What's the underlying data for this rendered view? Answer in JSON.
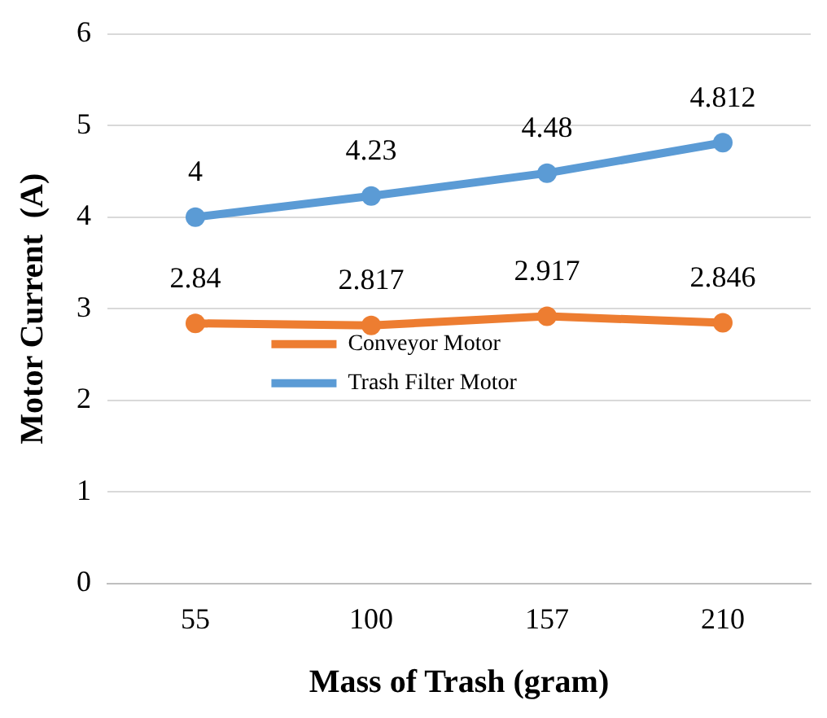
{
  "chart_data": {
    "type": "line",
    "xlabel": "Mass of Trash (gram)",
    "ylabel": "Motor Current  (A)",
    "categories": [
      "55",
      "100",
      "157",
      "210"
    ],
    "series": [
      {
        "name": "Conveyor Motor",
        "color": "#ed7d31",
        "values": [
          2.84,
          2.817,
          2.917,
          2.846
        ]
      },
      {
        "name": "Trash Filter Motor",
        "color": "#5b9bd5",
        "values": [
          4,
          4.23,
          4.48,
          4.812
        ]
      }
    ],
    "ylim": [
      0,
      6
    ],
    "yticks": [
      0,
      1,
      2,
      3,
      4,
      5,
      6
    ],
    "grid": "y",
    "legend": "center",
    "marker": "circle",
    "line_style": "solid",
    "data_labels": true
  }
}
